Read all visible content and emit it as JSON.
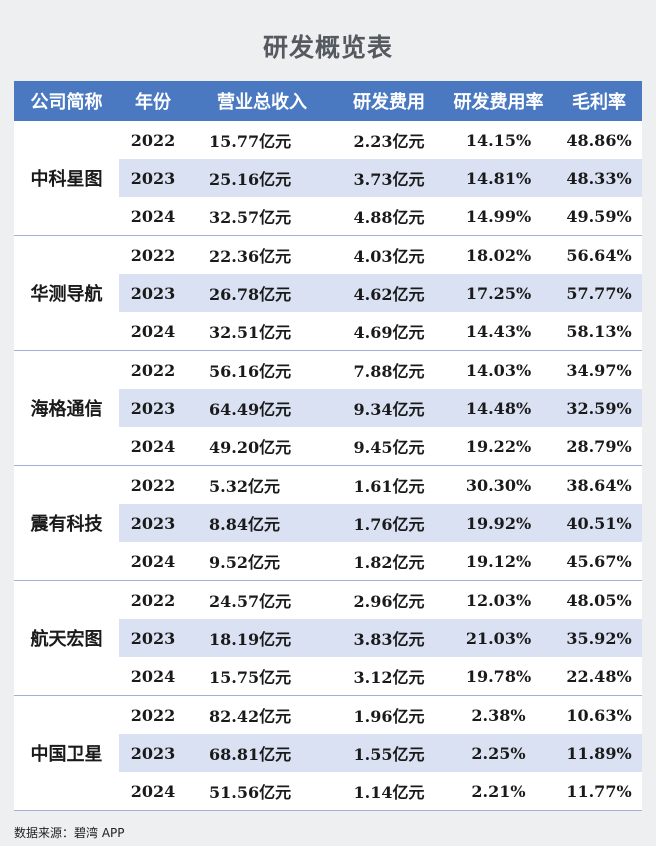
{
  "title": "研发概览表",
  "headers": [
    "公司简称",
    "年份",
    "营业总收入",
    "研发费用",
    "研发费用率",
    "毛利率"
  ],
  "companies": [
    {
      "name": "中科星图",
      "rows": [
        {
          "year": "2022",
          "revenue": "15.77亿元",
          "rd": "2.23亿元",
          "rd_rate": "14.15%",
          "gross_margin": "48.86%"
        },
        {
          "year": "2023",
          "revenue": "25.16亿元",
          "rd": "3.73亿元",
          "rd_rate": "14.81%",
          "gross_margin": "48.33%"
        },
        {
          "year": "2024",
          "revenue": "32.57亿元",
          "rd": "4.88亿元",
          "rd_rate": "14.99%",
          "gross_margin": "49.59%"
        }
      ]
    },
    {
      "name": "华测导航",
      "rows": [
        {
          "year": "2022",
          "revenue": "22.36亿元",
          "rd": "4.03亿元",
          "rd_rate": "18.02%",
          "gross_margin": "56.64%"
        },
        {
          "year": "2023",
          "revenue": "26.78亿元",
          "rd": "4.62亿元",
          "rd_rate": "17.25%",
          "gross_margin": "57.77%"
        },
        {
          "year": "2024",
          "revenue": "32.51亿元",
          "rd": "4.69亿元",
          "rd_rate": "14.43%",
          "gross_margin": "58.13%"
        }
      ]
    },
    {
      "name": "海格通信",
      "rows": [
        {
          "year": "2022",
          "revenue": "56.16亿元",
          "rd": "7.88亿元",
          "rd_rate": "14.03%",
          "gross_margin": "34.97%"
        },
        {
          "year": "2023",
          "revenue": "64.49亿元",
          "rd": "9.34亿元",
          "rd_rate": "14.48%",
          "gross_margin": "32.59%"
        },
        {
          "year": "2024",
          "revenue": "49.20亿元",
          "rd": "9.45亿元",
          "rd_rate": "19.22%",
          "gross_margin": "28.79%"
        }
      ]
    },
    {
      "name": "震有科技",
      "rows": [
        {
          "year": "2022",
          "revenue": "5.32亿元",
          "rd": "1.61亿元",
          "rd_rate": "30.30%",
          "gross_margin": "38.64%"
        },
        {
          "year": "2023",
          "revenue": "8.84亿元",
          "rd": "1.76亿元",
          "rd_rate": "19.92%",
          "gross_margin": "40.51%"
        },
        {
          "year": "2024",
          "revenue": "9.52亿元",
          "rd": "1.82亿元",
          "rd_rate": "19.12%",
          "gross_margin": "45.67%"
        }
      ]
    },
    {
      "name": "航天宏图",
      "rows": [
        {
          "year": "2022",
          "revenue": "24.57亿元",
          "rd": "2.96亿元",
          "rd_rate": "12.03%",
          "gross_margin": "48.05%"
        },
        {
          "year": "2023",
          "revenue": "18.19亿元",
          "rd": "3.83亿元",
          "rd_rate": "21.03%",
          "gross_margin": "35.92%"
        },
        {
          "year": "2024",
          "revenue": "15.75亿元",
          "rd": "3.12亿元",
          "rd_rate": "19.78%",
          "gross_margin": "22.48%"
        }
      ]
    },
    {
      "name": "中国卫星",
      "rows": [
        {
          "year": "2022",
          "revenue": "82.42亿元",
          "rd": "1.96亿元",
          "rd_rate": "2.38%",
          "gross_margin": "10.63%"
        },
        {
          "year": "2023",
          "revenue": "68.81亿元",
          "rd": "1.55亿元",
          "rd_rate": "2.25%",
          "gross_margin": "11.89%"
        },
        {
          "year": "2024",
          "revenue": "51.56亿元",
          "rd": "1.14亿元",
          "rd_rate": "2.21%",
          "gross_margin": "11.77%"
        }
      ]
    }
  ],
  "source": "数据来源：碧湾 APP",
  "colors": {
    "header": "#4a79c2",
    "stripe": "#d9e1f2",
    "title": "#555a60"
  }
}
